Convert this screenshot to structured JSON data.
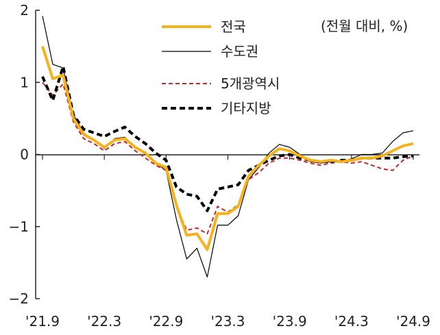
{
  "chart_data": {
    "type": "line",
    "unit_note": "(전월 대비, %)",
    "title": "",
    "xlabel": "",
    "ylabel": "",
    "ylim": [
      -2,
      2
    ],
    "yticks": [
      2,
      1,
      0,
      -1,
      -2
    ],
    "ytick_labels": [
      "2",
      "1",
      "0",
      "−1",
      "−2"
    ],
    "xtick_labels": [
      "'21.9",
      "'22.3",
      "'22.9",
      "'23.3",
      "'23.9",
      "'24.3",
      "'24.9"
    ],
    "xtick_index": [
      0,
      6,
      12,
      18,
      24,
      30,
      36
    ],
    "grid": false,
    "legend_position": "top-right",
    "x": [
      "'21.9",
      "'21.10",
      "'21.11",
      "'21.12",
      "'22.1",
      "'22.2",
      "'22.3",
      "'22.4",
      "'22.5",
      "'22.6",
      "'22.7",
      "'22.8",
      "'22.9",
      "'22.10",
      "'22.11",
      "'22.12",
      "'23.1",
      "'23.2",
      "'23.3",
      "'23.4",
      "'23.5",
      "'23.6",
      "'23.7",
      "'23.8",
      "'23.9",
      "'23.10",
      "'23.11",
      "'23.12",
      "'24.1",
      "'24.2",
      "'24.3",
      "'24.4",
      "'24.5",
      "'24.6",
      "'24.7",
      "'24.8",
      "'24.9"
    ],
    "series": [
      {
        "name": "전국",
        "color": "#F5B21B",
        "style": "solid-thick",
        "values": [
          1.5,
          1.05,
          1.1,
          0.5,
          0.28,
          0.2,
          0.1,
          0.2,
          0.22,
          0.1,
          0.02,
          -0.12,
          -0.18,
          -0.7,
          -1.12,
          -1.1,
          -1.32,
          -0.82,
          -0.82,
          -0.72,
          -0.3,
          -0.15,
          -0.02,
          0.08,
          0.05,
          -0.02,
          -0.08,
          -0.1,
          -0.08,
          -0.1,
          -0.08,
          -0.05,
          -0.05,
          -0.02,
          0.05,
          0.12,
          0.15
        ]
      },
      {
        "name": "수도권",
        "color": "#000000",
        "style": "solid-thin",
        "values": [
          1.92,
          1.25,
          1.2,
          0.55,
          0.3,
          0.2,
          0.08,
          0.22,
          0.24,
          0.1,
          0.0,
          -0.12,
          -0.22,
          -0.9,
          -1.45,
          -1.3,
          -1.7,
          -0.98,
          -0.98,
          -0.85,
          -0.35,
          -0.18,
          0.02,
          0.14,
          0.1,
          0.0,
          -0.1,
          -0.12,
          -0.1,
          -0.1,
          -0.06,
          0.0,
          0.0,
          0.02,
          0.18,
          0.3,
          0.33
        ]
      },
      {
        "name": "5개광역시",
        "color": "#C0282B",
        "style": "dashed",
        "values": [
          1.0,
          0.82,
          0.98,
          0.45,
          0.22,
          0.15,
          0.05,
          0.15,
          0.18,
          0.05,
          -0.05,
          -0.15,
          -0.22,
          -0.72,
          -1.05,
          -1.02,
          -1.1,
          -0.72,
          -0.8,
          -0.7,
          -0.35,
          -0.25,
          -0.12,
          -0.05,
          -0.05,
          -0.08,
          -0.12,
          -0.15,
          -0.12,
          -0.1,
          -0.12,
          -0.1,
          -0.15,
          -0.2,
          -0.22,
          -0.08,
          -0.02
        ]
      },
      {
        "name": "기타지방",
        "color": "#000000",
        "style": "dashed-thick",
        "values": [
          1.08,
          0.75,
          1.22,
          0.55,
          0.35,
          0.3,
          0.25,
          0.32,
          0.38,
          0.25,
          0.15,
          0.02,
          -0.08,
          -0.45,
          -0.55,
          -0.58,
          -0.78,
          -0.48,
          -0.45,
          -0.42,
          -0.22,
          -0.15,
          -0.08,
          -0.02,
          0.0,
          -0.05,
          -0.08,
          -0.1,
          -0.1,
          -0.08,
          -0.08,
          -0.05,
          -0.05,
          -0.05,
          -0.05,
          -0.03,
          -0.02
        ]
      }
    ]
  }
}
